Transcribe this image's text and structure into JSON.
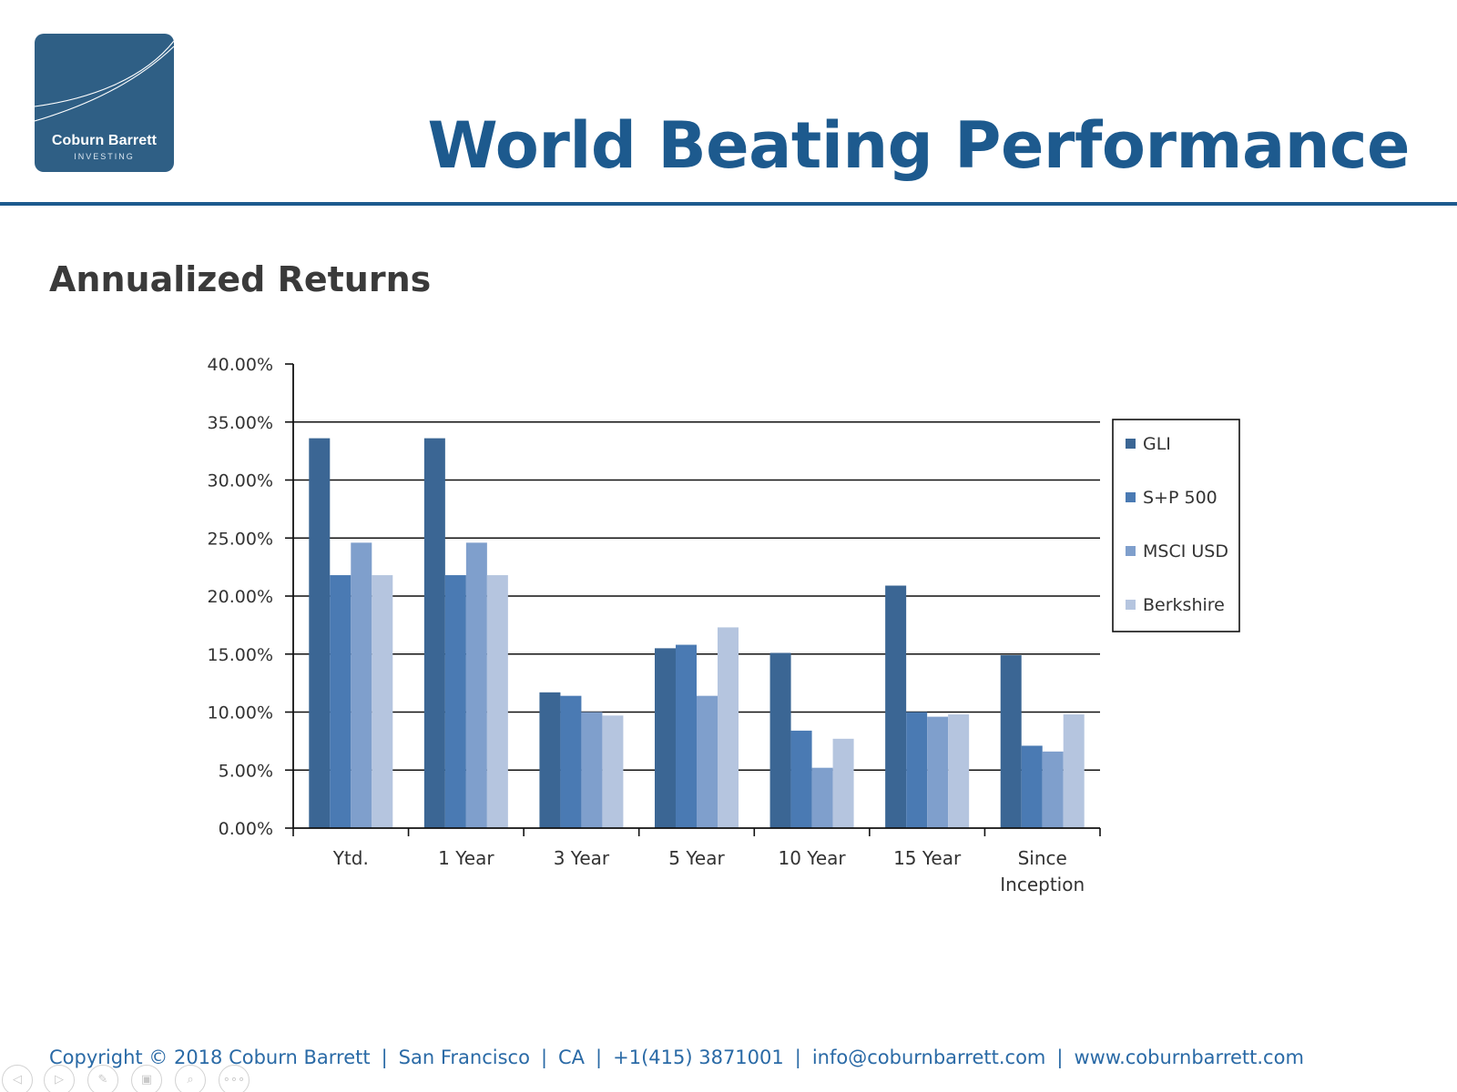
{
  "header": {
    "logo_name": "Coburn Barrett",
    "logo_sub": "INVESTING",
    "title": "World Beating Performance"
  },
  "section": {
    "title": "Annualized Returns"
  },
  "chart_data": {
    "type": "bar",
    "title": "",
    "xlabel": "",
    "ylabel": "",
    "ylim": [
      0,
      40
    ],
    "yticks": [
      "0.00%",
      "5.00%",
      "10.00%",
      "15.00%",
      "20.00%",
      "25.00%",
      "30.00%",
      "35.00%",
      "40.00%"
    ],
    "grid": true,
    "legend_position": "right",
    "categories": [
      "Ytd.",
      "1 Year",
      "3 Year",
      "5 Year",
      "10 Year",
      "15 Year",
      "Since Inception"
    ],
    "series": [
      {
        "name": "GLI",
        "color": "#3b6694",
        "values": [
          33.6,
          33.6,
          11.7,
          15.5,
          15.1,
          20.9,
          14.9
        ]
      },
      {
        "name": "S+P 500",
        "color": "#4a7ab3",
        "values": [
          21.8,
          21.8,
          11.4,
          15.8,
          8.4,
          10.0,
          7.1
        ]
      },
      {
        "name": "MSCI USD",
        "color": "#7f9fcc",
        "values": [
          24.6,
          24.6,
          10.0,
          11.4,
          5.2,
          9.6,
          6.6
        ]
      },
      {
        "name": "Berkshire",
        "color": "#b5c5df",
        "values": [
          21.8,
          21.8,
          9.7,
          17.3,
          7.7,
          9.8,
          9.8
        ]
      }
    ]
  },
  "footer": {
    "copyright": "Copyright © 2018 Coburn Barrett",
    "city": "San Francisco",
    "state": "CA",
    "phone": "+1(415) 3871001",
    "email": "info@coburnbarrett.com",
    "website": "www.coburnbarrett.com",
    "separator": "|"
  },
  "nav": {
    "prev_icon": "◁",
    "next_icon": "▷",
    "pen_icon": "✎",
    "slides_icon": "▣",
    "zoom_icon": "⌕",
    "more_icon": "∘∘∘"
  }
}
